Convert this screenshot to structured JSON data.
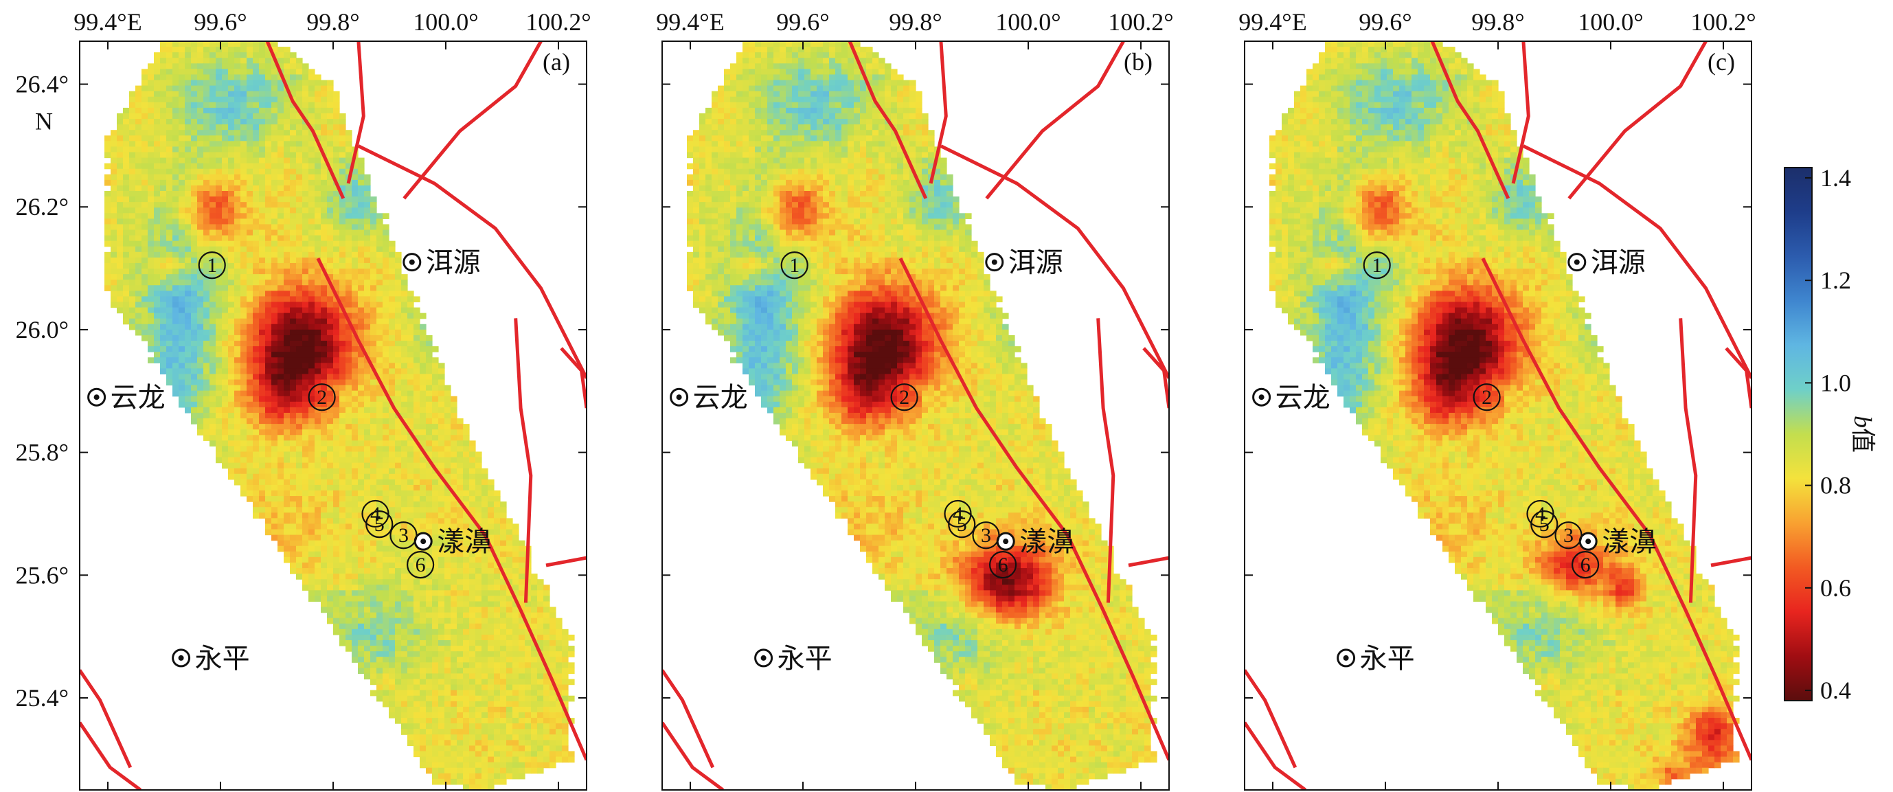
{
  "panels": [
    {
      "id": "a",
      "label": "(a)",
      "scenario": "a"
    },
    {
      "id": "b",
      "label": "(b)",
      "scenario": "b"
    },
    {
      "id": "c",
      "label": "(c)",
      "scenario": "c"
    }
  ],
  "axes": {
    "lon_range": [
      99.35,
      100.25
    ],
    "lat_range": [
      25.25,
      26.47
    ],
    "lon_ticks": [
      {
        "value": 99.4,
        "label": "99.4°E"
      },
      {
        "value": 99.6,
        "label": "99.6°"
      },
      {
        "value": 99.8,
        "label": "99.8°"
      },
      {
        "value": 100.0,
        "label": "100.0°"
      },
      {
        "value": 100.2,
        "label": "100.2°"
      }
    ],
    "lat_ticks": [
      {
        "value": 26.4,
        "label": "26.4°"
      },
      {
        "value": 26.2,
        "label": "26.2°"
      },
      {
        "value": 26.0,
        "label": "26.0°"
      },
      {
        "value": 25.8,
        "label": "25.8°"
      },
      {
        "value": 25.6,
        "label": "25.6°"
      },
      {
        "value": 25.4,
        "label": "25.4°"
      }
    ],
    "lat_unit_label": "N"
  },
  "places": [
    {
      "name": "洱源",
      "lon": 99.94,
      "lat": 26.11
    },
    {
      "name": "云龙",
      "lon": 99.38,
      "lat": 25.89
    },
    {
      "name": "漾濞",
      "lon": 99.96,
      "lat": 25.655
    },
    {
      "name": "永平",
      "lon": 99.53,
      "lat": 25.465
    }
  ],
  "events": [
    {
      "label": "1",
      "lon": 99.585,
      "lat": 26.105
    },
    {
      "label": "2",
      "lon": 99.78,
      "lat": 25.89
    },
    {
      "label": "3",
      "lon": 99.925,
      "lat": 25.665
    },
    {
      "label": "4",
      "lon": 99.875,
      "lat": 25.7
    },
    {
      "label": "5",
      "lon": 99.882,
      "lat": 25.683
    },
    {
      "label": "6",
      "lon": 99.955,
      "lat": 25.617
    }
  ],
  "colorbar": {
    "title_italic": "b",
    "title_suffix": "值",
    "min": 0.38,
    "max": 1.42,
    "ticks": [
      1.4,
      1.2,
      1.0,
      0.8,
      0.6,
      0.4
    ],
    "tick_labels": [
      "1.4",
      "1.2",
      "1.0",
      "0.8",
      "0.6",
      "0.4"
    ],
    "colors": [
      "#5a0d0d",
      "#a00d12",
      "#e8251f",
      "#f25a22",
      "#f8a131",
      "#f4e23c",
      "#c3de4e",
      "#6fd0c8",
      "#5fb6e2",
      "#3f86cf",
      "#2c5cae",
      "#1e3d8a",
      "#1c2f6b"
    ]
  },
  "fault_color": "#e3262b"
}
